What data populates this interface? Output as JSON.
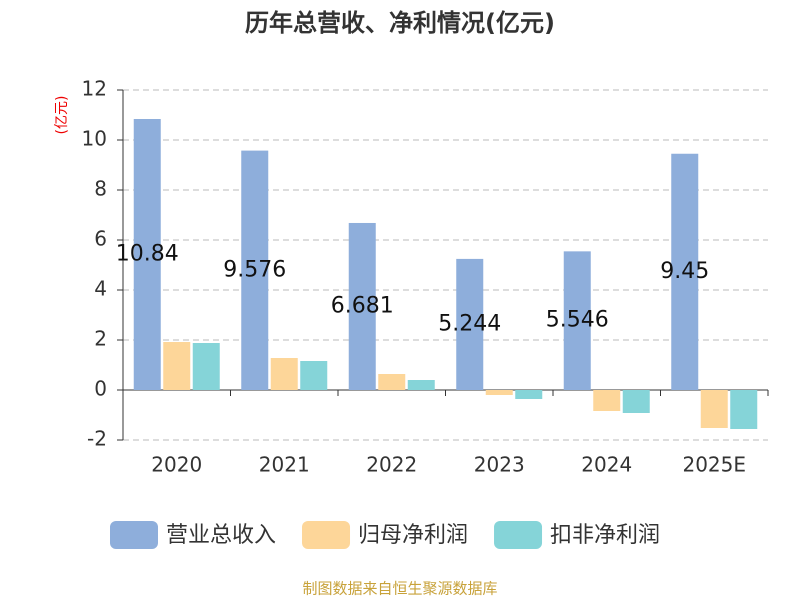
{
  "chart_data": {
    "type": "bar",
    "title": "历年总营收、净利情况(亿元)",
    "y_label": "(亿元)",
    "categories": [
      "2020",
      "2021",
      "2022",
      "2023",
      "2024",
      "2025E"
    ],
    "series": [
      {
        "name": "营业总收入",
        "color": "#8eaedb",
        "values": [
          10.84,
          9.576,
          6.681,
          5.244,
          5.546,
          9.45
        ]
      },
      {
        "name": "归母净利润",
        "color": "#fdd699",
        "values": [
          1.92,
          1.28,
          0.64,
          -0.2,
          -0.84,
          -1.52
        ]
      },
      {
        "name": "扣非净利润",
        "color": "#85d4d8",
        "values": [
          1.88,
          1.16,
          0.4,
          -0.36,
          -0.92,
          -1.56
        ]
      }
    ],
    "ylim": [
      -2,
      12
    ],
    "yticks": [
      -2,
      0,
      2,
      4,
      6,
      8,
      10,
      12
    ],
    "grid": true,
    "source": "制图数据来自恒生聚源数据库"
  }
}
